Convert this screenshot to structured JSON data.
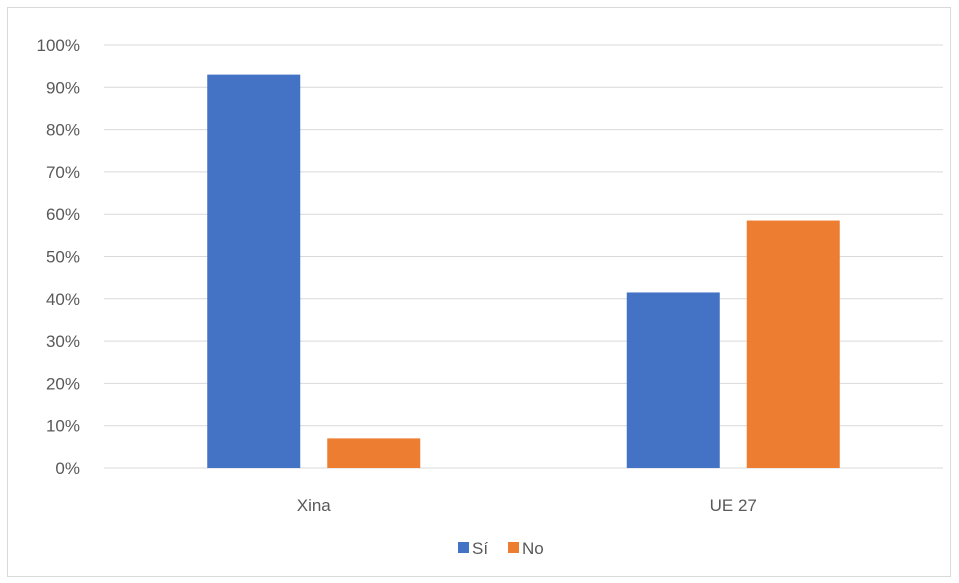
{
  "chart_data": {
    "type": "bar",
    "categories": [
      "Xina",
      "UE 27"
    ],
    "series": [
      {
        "name": "Sí",
        "values": [
          93,
          41.5
        ],
        "color": "#4472C4"
      },
      {
        "name": "No",
        "values": [
          7,
          58.5
        ],
        "color": "#ED7D31"
      }
    ],
    "ylim": [
      0,
      100
    ],
    "yticks": [
      "0%",
      "10%",
      "20%",
      "30%",
      "40%",
      "50%",
      "60%",
      "70%",
      "80%",
      "90%",
      "100%"
    ],
    "title": "",
    "xlabel": "",
    "ylabel": "",
    "grid": true,
    "legend_position": "bottom"
  }
}
